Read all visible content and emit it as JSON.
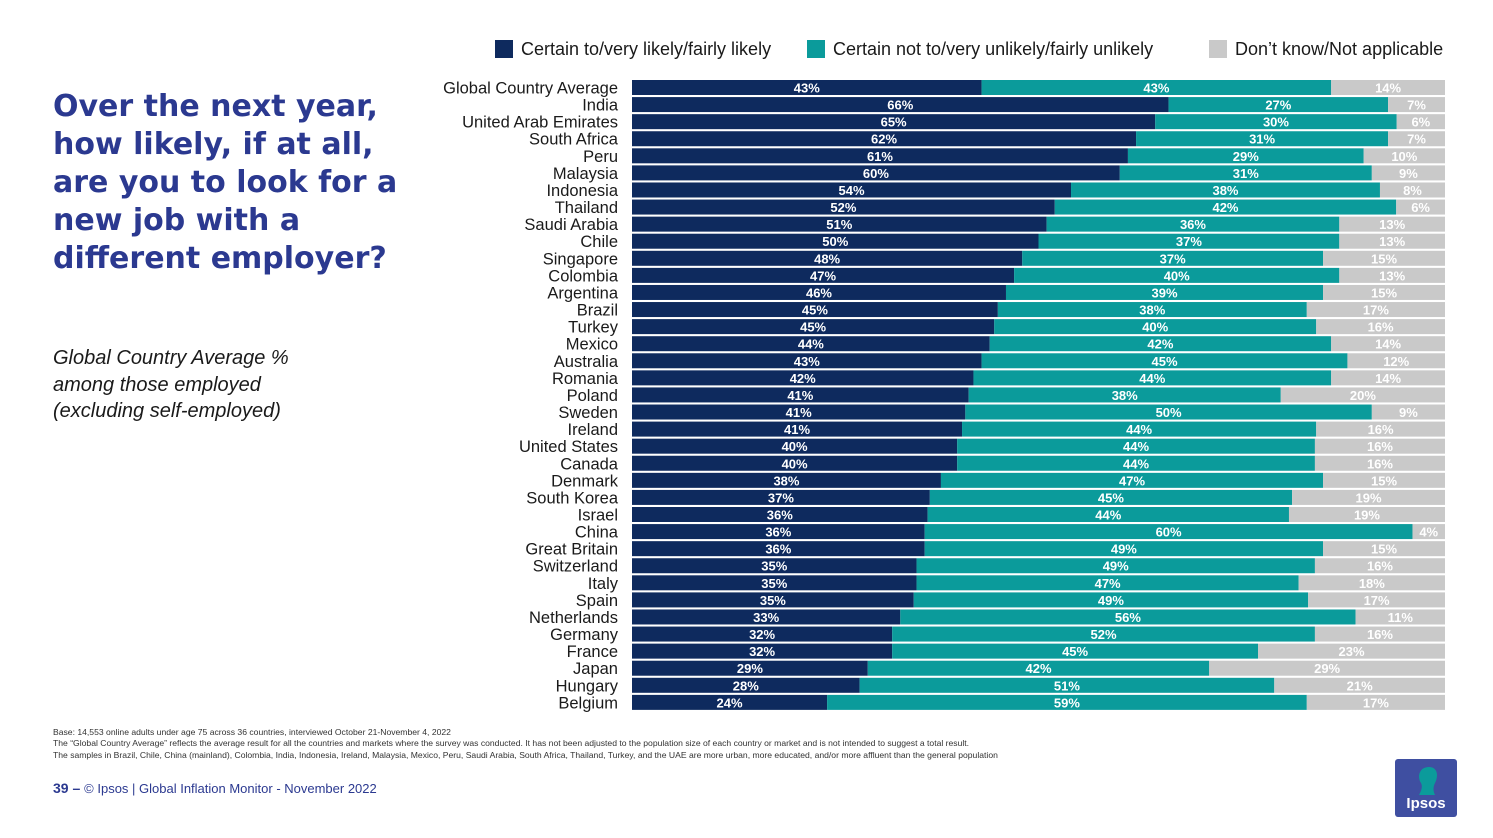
{
  "question": "Over the next year, how likely, if at all, are you to look for a new job with a different employer?",
  "subtitle": "Global Country Average % among those employed (excluding self-employed)",
  "footnotes": {
    "base": "Base: 14,553 online adults under age 75 across 36 countries, interviewed October 21-November 4, 2022",
    "gca_note": "The “Global Country Average” reflects the average result for all the countries and markets where the survey was conducted. It has not been adjusted to the population size of each country or market and is not intended to suggest a total result.",
    "sample_note": "The samples in Brazil, Chile, China (mainland), Colombia, India, Indonesia, Ireland, Malaysia, Mexico, Peru, Saudi Arabia, South Africa, Thailand, Turkey, and the UAE are more urban, more educated, and/or more affluent than the general population"
  },
  "footer": {
    "page": "39",
    "separator": " – ",
    "text": "© Ipsos | Global Inflation Monitor - November 2022"
  },
  "logo": {
    "text": "Ipsos"
  },
  "colors": {
    "likely": "#0e2a5e",
    "unlikely": "#0b9b9b",
    "dontknow": "#c9c9c9",
    "title": "#2b3990"
  },
  "chart_data": {
    "type": "bar",
    "orientation": "horizontal",
    "stacked": true,
    "legend_position": "top",
    "value_suffix": "%",
    "categories": [
      "Global Country Average",
      "India",
      "United Arab Emirates",
      "South Africa",
      "Peru",
      "Malaysia",
      "Indonesia",
      "Thailand",
      "Saudi Arabia",
      "Chile",
      "Singapore",
      "Colombia",
      "Argentina",
      "Brazil",
      "Turkey",
      "Mexico",
      "Australia",
      "Romania",
      "Poland",
      "Sweden",
      "Ireland",
      "United States",
      "Canada",
      "Denmark",
      "South Korea",
      "Israel",
      "China",
      "Great Britain",
      "Switzerland",
      "Italy",
      "Spain",
      "Netherlands",
      "Germany",
      "France",
      "Japan",
      "Hungary",
      "Belgium"
    ],
    "series": [
      {
        "name": "Certain to/very likely/fairly likely",
        "color": "#0e2a5e",
        "values": [
          43,
          66,
          65,
          62,
          61,
          60,
          54,
          52,
          51,
          50,
          48,
          47,
          46,
          45,
          45,
          44,
          43,
          42,
          41,
          41,
          41,
          40,
          40,
          38,
          37,
          36,
          36,
          36,
          35,
          35,
          35,
          33,
          32,
          32,
          29,
          28,
          24
        ]
      },
      {
        "name": "Certain not to/very unlikely/fairly unlikely",
        "color": "#0b9b9b",
        "values": [
          43,
          27,
          30,
          31,
          29,
          31,
          38,
          42,
          36,
          37,
          37,
          40,
          39,
          38,
          40,
          42,
          45,
          44,
          38,
          50,
          44,
          44,
          44,
          47,
          45,
          44,
          60,
          49,
          49,
          47,
          49,
          56,
          52,
          45,
          42,
          51,
          59
        ]
      },
      {
        "name": "Don’t know/Not applicable",
        "color": "#c9c9c9",
        "values": [
          14,
          7,
          6,
          7,
          10,
          9,
          8,
          6,
          13,
          13,
          15,
          13,
          15,
          17,
          16,
          14,
          12,
          14,
          20,
          9,
          16,
          16,
          16,
          15,
          19,
          19,
          4,
          15,
          16,
          18,
          17,
          11,
          16,
          23,
          29,
          21,
          17
        ]
      }
    ]
  }
}
